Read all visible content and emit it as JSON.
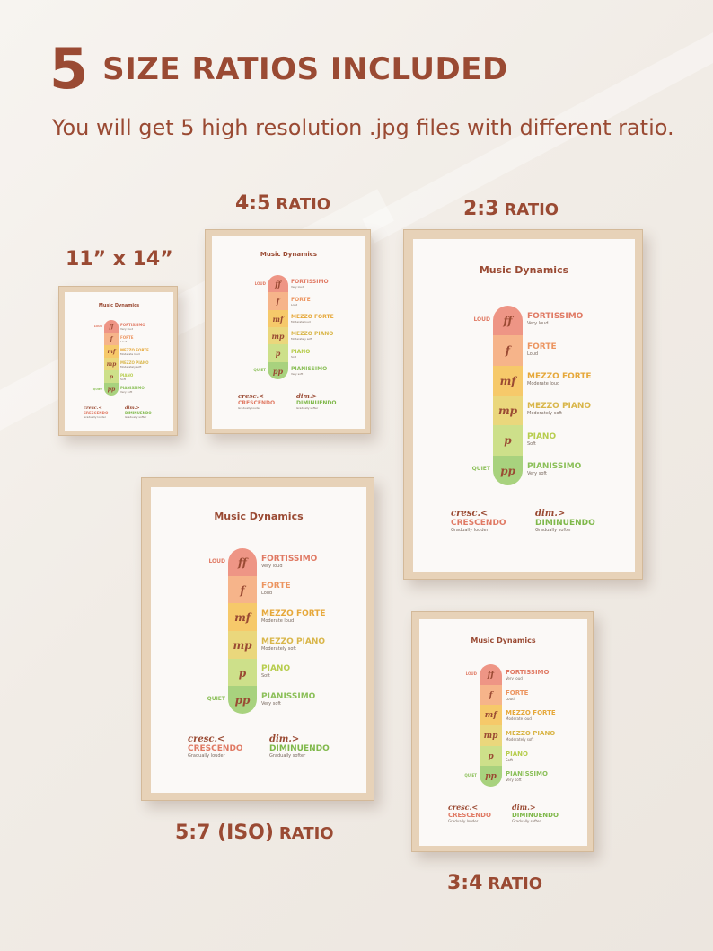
{
  "header": {
    "big_number": "5",
    "headline_rest": "SIZE RATIOS INCLUDED",
    "subtitle": "You will get 5 high resolution .jpg files with different ratio."
  },
  "labels": {
    "size_11x14": "11” x 14”",
    "r45_num": "4:5",
    "r23_num": "2:3",
    "r57_num": "5:7 (ISO)",
    "r34_num": "3:4",
    "ratio_word": "RATIO"
  },
  "poster": {
    "title": "Music Dynamics",
    "loud": "LOUD",
    "quiet": "QUIET",
    "levels": [
      {
        "symbol": "ff",
        "name": "FORTISSIMO",
        "desc": "Very loud",
        "color": "#ee9585",
        "text_color": "#e07a64"
      },
      {
        "symbol": "f",
        "name": "FORTE",
        "desc": "Loud",
        "color": "#f6b48a",
        "text_color": "#ec9560"
      },
      {
        "symbol": "mf",
        "name": "MEZZO FORTE",
        "desc": "Moderate loud",
        "color": "#f6c96a",
        "text_color": "#e6a83a"
      },
      {
        "symbol": "mp",
        "name": "MEZZO PIANO",
        "desc": "Moderately soft",
        "color": "#ead77c",
        "text_color": "#d9b64a"
      },
      {
        "symbol": "p",
        "name": "PIANO",
        "desc": "Soft",
        "color": "#cde08a",
        "text_color": "#b7cd4e"
      },
      {
        "symbol": "pp",
        "name": "PIANISSIMO",
        "desc": "Very soft",
        "color": "#a8d27e",
        "text_color": "#8cc05a"
      }
    ],
    "crescendo": {
      "symbol": "cresc.<",
      "name": "CRESCENDO",
      "desc": "Gradually louder",
      "color": "#e07a64"
    },
    "diminuendo": {
      "symbol": "dim.>",
      "name": "DIMINUENDO",
      "desc": "Gradually softer",
      "color": "#7fb84a"
    }
  },
  "colors": {
    "brand": "#9a4a33",
    "frame": "#e7d2b8",
    "background": "#f3eee8"
  }
}
